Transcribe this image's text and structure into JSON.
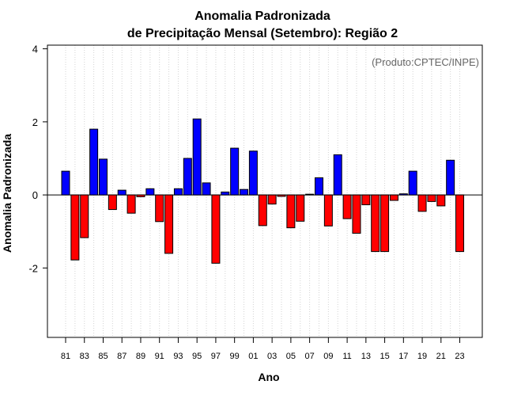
{
  "chart_data": {
    "type": "bar",
    "title": "Anomalia Padronizada",
    "subtitle": "de Precipitação Mensal (Setembro): Região 2",
    "xlabel": "Ano",
    "ylabel": "Anomalia Padronizada",
    "annotation": "(Produto:CPTEC/INPE)",
    "ylim": [
      -3.9,
      4.1
    ],
    "yticks": [
      -2,
      0,
      2,
      4
    ],
    "ytick_labels": [
      "-2",
      "0",
      "2",
      "4"
    ],
    "x_tick_labels": [
      "81",
      "83",
      "85",
      "87",
      "89",
      "91",
      "93",
      "95",
      "97",
      "99",
      "01",
      "03",
      "05",
      "07",
      "09",
      "11",
      "13",
      "15",
      "17",
      "19",
      "21",
      "23"
    ],
    "categories": [
      "81",
      "82",
      "83",
      "84",
      "85",
      "86",
      "87",
      "88",
      "89",
      "90",
      "91",
      "92",
      "93",
      "94",
      "95",
      "96",
      "97",
      "98",
      "99",
      "00",
      "01",
      "02",
      "03",
      "04",
      "05",
      "06",
      "07",
      "08",
      "09",
      "10",
      "11",
      "12",
      "13",
      "14",
      "15",
      "16",
      "17",
      "18",
      "19",
      "20",
      "21",
      "22",
      "23"
    ],
    "values": [
      0.65,
      -1.78,
      -1.17,
      1.8,
      0.98,
      -0.4,
      0.13,
      -0.5,
      -0.05,
      0.17,
      -0.73,
      -1.6,
      0.17,
      1.0,
      2.08,
      0.33,
      -1.87,
      0.08,
      1.28,
      0.15,
      1.2,
      -0.84,
      -0.25,
      -0.04,
      -0.9,
      -0.72,
      0.02,
      0.47,
      -0.85,
      1.1,
      -0.65,
      -1.05,
      -0.27,
      -1.55,
      -1.55,
      -0.15,
      0.03,
      0.65,
      -0.45,
      -0.18,
      -0.3,
      0.95,
      -1.55
    ],
    "positive_color": "#0000ff",
    "negative_color": "#ff0000",
    "grid": true
  }
}
